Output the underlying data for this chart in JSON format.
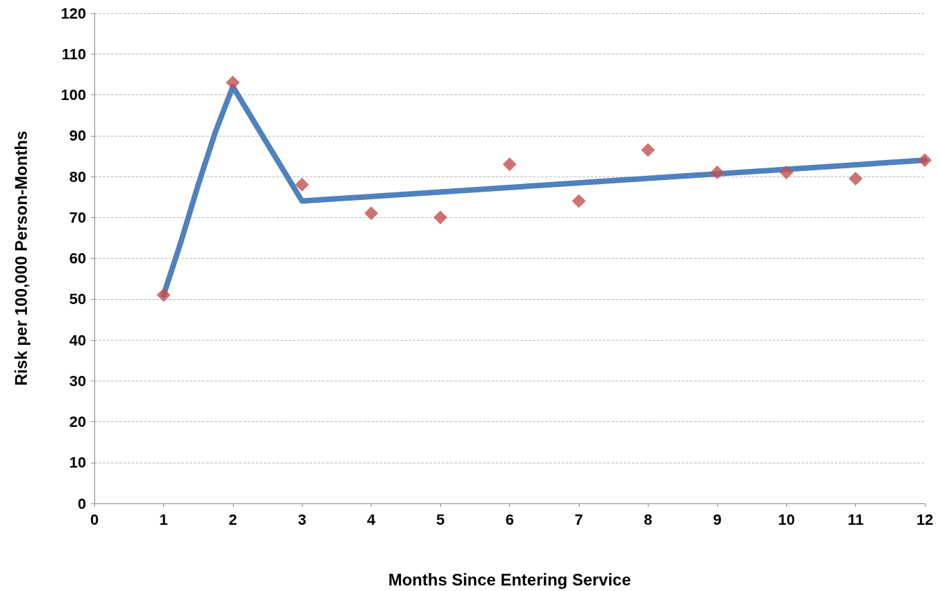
{
  "chart_data": {
    "type": "scatter",
    "xlabel": "Months Since Entering Service",
    "ylabel": "Risk per 100,000 Person-Months",
    "xlim": [
      0,
      12
    ],
    "xticks": [
      0,
      1,
      2,
      3,
      4,
      5,
      6,
      7,
      8,
      9,
      10,
      11,
      12
    ],
    "ylim": [
      0,
      120
    ],
    "yticks": [
      0,
      10,
      20,
      30,
      40,
      50,
      60,
      70,
      80,
      90,
      100,
      110,
      120
    ],
    "grid": "y",
    "series": [
      {
        "color": "#c0504d",
        "marker": "diamond",
        "x": [
          1,
          2,
          3,
          4,
          5,
          6,
          7,
          8,
          9,
          10,
          11,
          12
        ],
        "values": [
          51,
          103,
          78,
          71,
          70,
          83,
          74,
          86.5,
          81,
          81,
          79.5,
          84
        ]
      },
      {
        "type": "line",
        "color": "#4f81bd",
        "marker": "none",
        "line_style": "solid",
        "x": [
          1,
          1.25,
          1.5,
          1.75,
          2,
          2.5,
          3,
          12
        ],
        "values": [
          51,
          64,
          78,
          91,
          102,
          88,
          74,
          84
        ]
      }
    ]
  }
}
